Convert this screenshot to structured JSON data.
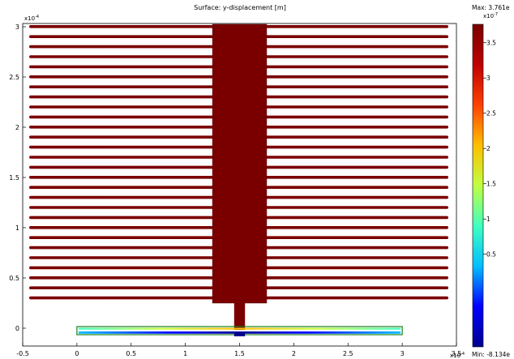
{
  "chart_data": {
    "type": "heatmap",
    "title": "Surface: y-displacement [m]",
    "x_exponent_label": "x10",
    "x_exponent_power": "-4",
    "y_exponent_label": "x10",
    "y_exponent_power": "-4",
    "xlim": [
      -0.5,
      3.5
    ],
    "ylim": [
      -0.1,
      3.0
    ],
    "x_ticks": [
      -0.5,
      0,
      0.5,
      1,
      1.5,
      2,
      2.5,
      3,
      3.5
    ],
    "x_tick_labels": [
      "-0.5",
      "0",
      "0.5",
      "1",
      "1.5",
      "2",
      "2.5",
      "3",
      "3.5"
    ],
    "y_ticks": [
      0,
      0.5,
      1,
      1.5,
      2,
      2.5,
      3
    ],
    "y_tick_labels": [
      "0",
      "0.5",
      "1",
      "1.5",
      "2",
      "2.5",
      "3"
    ],
    "fingers": {
      "x_start": -0.5,
      "x_end": 3.5,
      "y_values": [
        0.3,
        0.4,
        0.5,
        0.6,
        0.7,
        0.8,
        0.9,
        1.0,
        1.1,
        1.2,
        1.3,
        1.4,
        1.5,
        1.6,
        1.7,
        1.8,
        1.9,
        2.0,
        2.1,
        2.2,
        2.3,
        2.4,
        2.5,
        2.6,
        2.7,
        2.8,
        2.9,
        3.0
      ],
      "color": "#7a0000"
    },
    "shuttle": {
      "x0": 1.25,
      "x1": 1.75,
      "y0": 0.25,
      "y1": 3.0,
      "color": "#7a0000"
    },
    "stem": {
      "x0": 1.45,
      "x1": 1.55,
      "y0": 0.0,
      "y1": 0.25,
      "color": "#7a0000"
    },
    "beam": {
      "x0": 0.0,
      "x1": 3.0,
      "y0": -0.08,
      "y1": 0.0
    },
    "colorbar": {
      "max_label": "Max: 3.761e",
      "min_label": "Min: -8.134e",
      "exponent_label": "x10",
      "exponent_power": "-7",
      "range": [
        -0.8134,
        3.761
      ],
      "ticks": [
        0.5,
        1,
        1.5,
        2,
        2.5,
        3,
        3.5
      ],
      "tick_labels": [
        "0.5",
        "1",
        "1.5",
        "2",
        "2.5",
        "3",
        "3.5"
      ],
      "colors": [
        "#00008f",
        "#0000ff",
        "#00bfff",
        "#40ffbf",
        "#bfff40",
        "#ffbf00",
        "#ff4000",
        "#bf0000",
        "#7a0000"
      ]
    }
  }
}
